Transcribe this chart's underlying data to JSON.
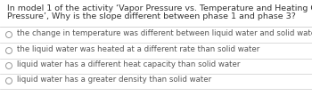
{
  "question_line1": "In model 1 of the activity ‘Vapor Pressure vs. Temperature and Heating Curves and Vapor",
  "question_line2": "Pressure’, Why is the slope different between phase 1 and phase 3?",
  "options": [
    "the change in temperature was different between liquid water and solid water",
    "the liquid water was heated at a different rate than solid water",
    "liquid water has a different heat capacity than solid water",
    "liquid water has a greater density than solid water"
  ],
  "bg_color": "#ffffff",
  "text_color": "#555555",
  "question_color": "#333333",
  "divider_color": "#cccccc",
  "circle_color": "#999999",
  "question_fontsize": 6.8,
  "option_fontsize": 6.2
}
